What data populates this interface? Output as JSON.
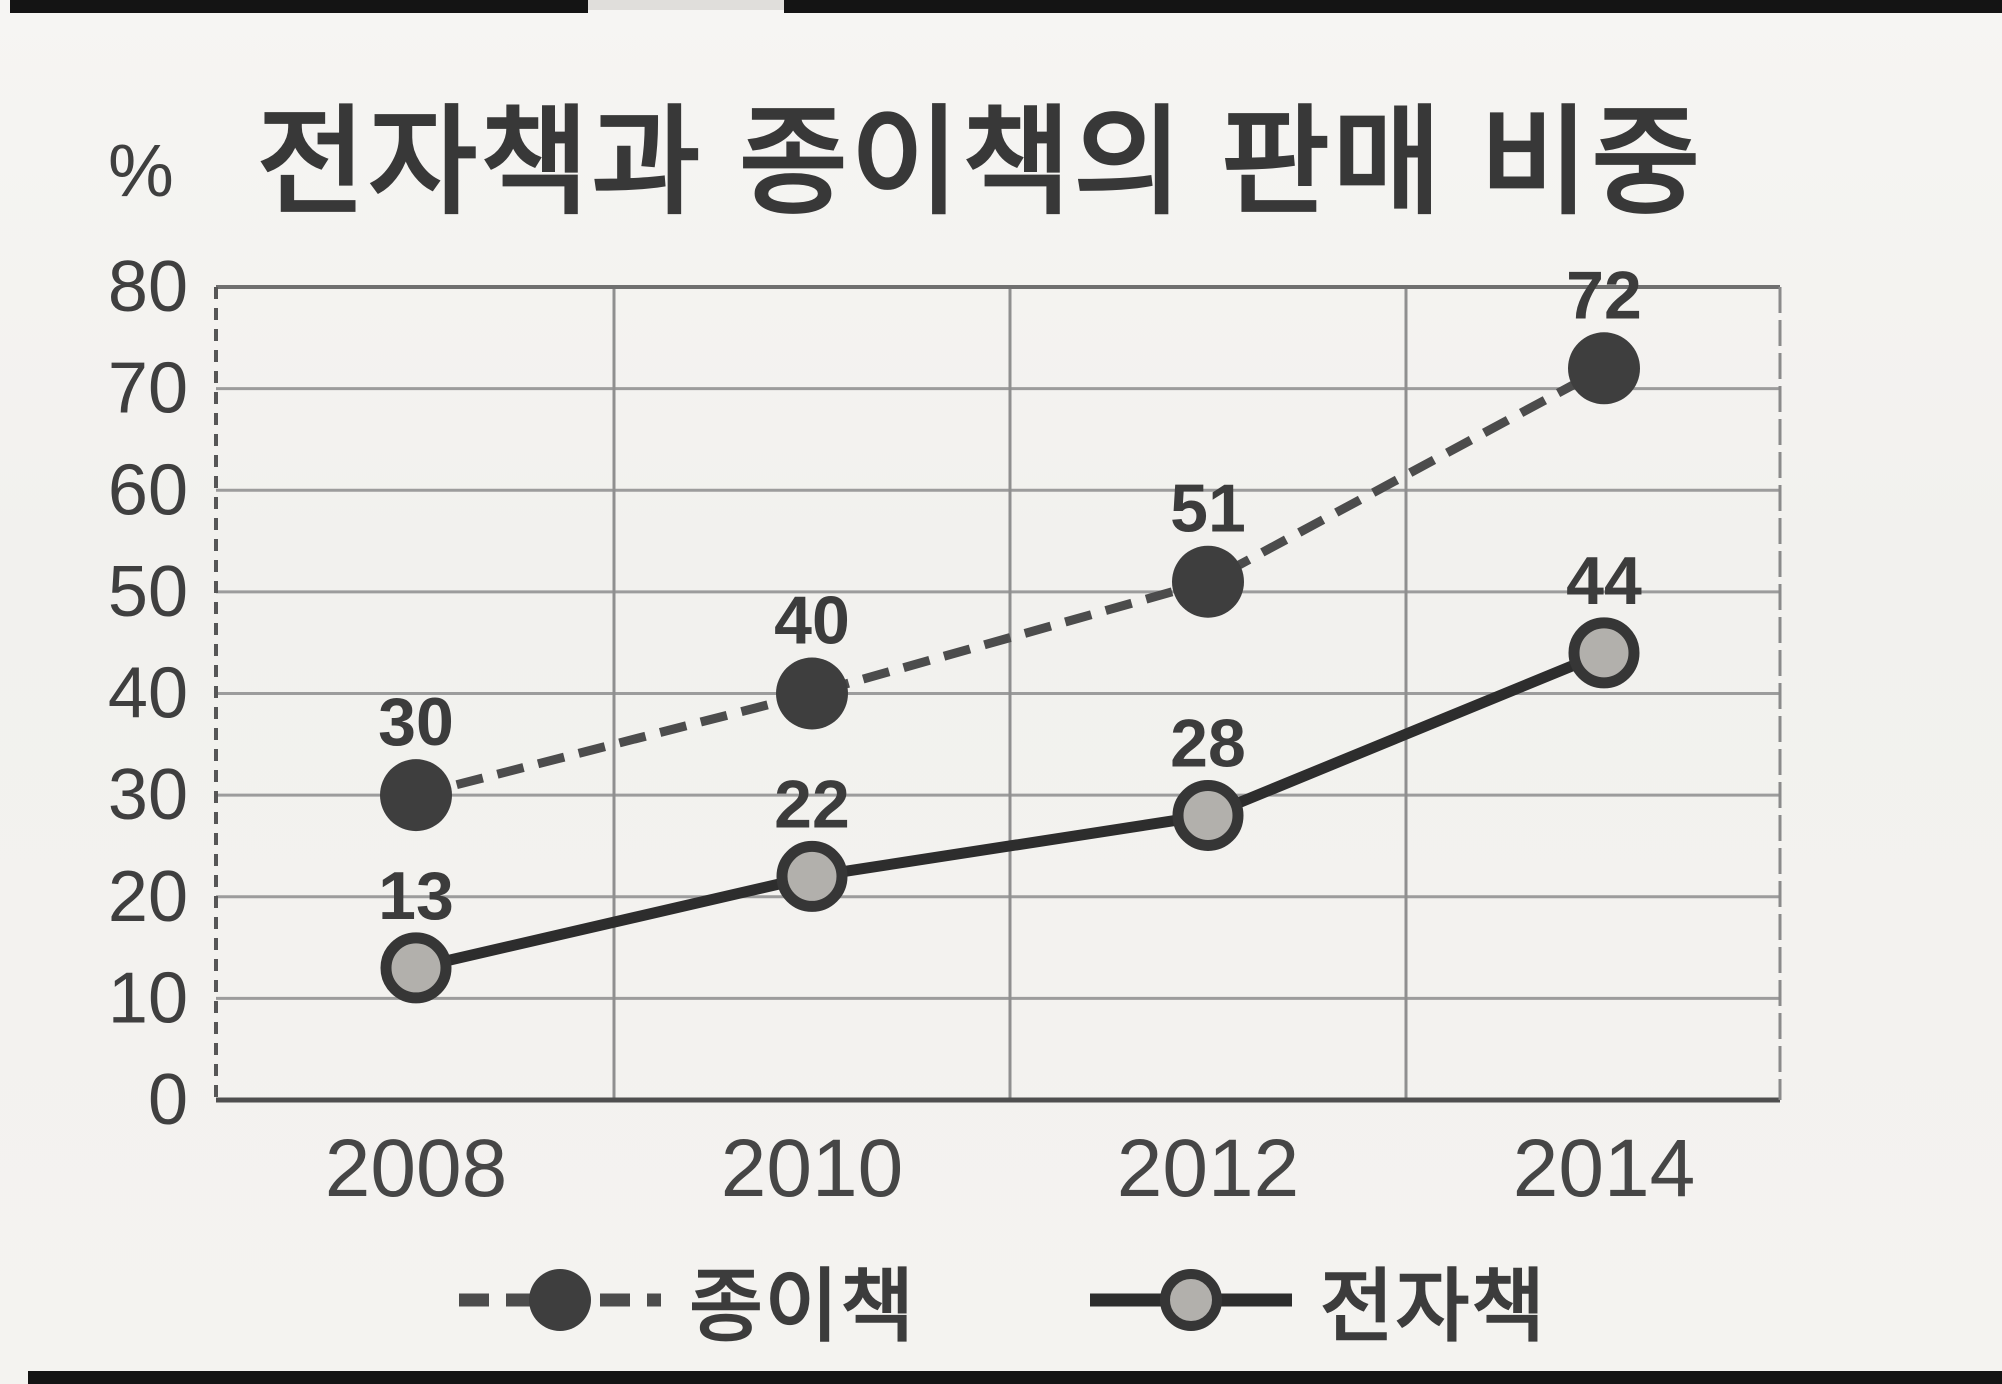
{
  "chart_data": {
    "type": "line",
    "title": "전자책과 종이책의 판매 비중",
    "unit": "%",
    "categories": [
      "2008",
      "2010",
      "2012",
      "2014"
    ],
    "yticks": [
      0,
      10,
      20,
      30,
      40,
      50,
      60,
      70,
      80
    ],
    "ylim": [
      0,
      80
    ],
    "grid": true,
    "legend_position": "bottom",
    "series": [
      {
        "name": "종이책",
        "values": [
          30,
          40,
          51,
          72
        ],
        "line_style": "dashed",
        "marker": "filled-dark-circle"
      },
      {
        "name": "전자책",
        "values": [
          13,
          22,
          28,
          44
        ],
        "line_style": "solid",
        "marker": "light-circle-dark-ring"
      }
    ],
    "colors": {
      "paper_line": "#4c4c4c",
      "paper_dot": "#3e3e3e",
      "ebook_line": "#2d2d2d",
      "ebook_dot_fill": "#b2b0ac",
      "ebook_dot_ring": "#363636",
      "grid": "#9c9c9c",
      "border": "#6f6f6f",
      "text": "#3f3f3f"
    }
  }
}
